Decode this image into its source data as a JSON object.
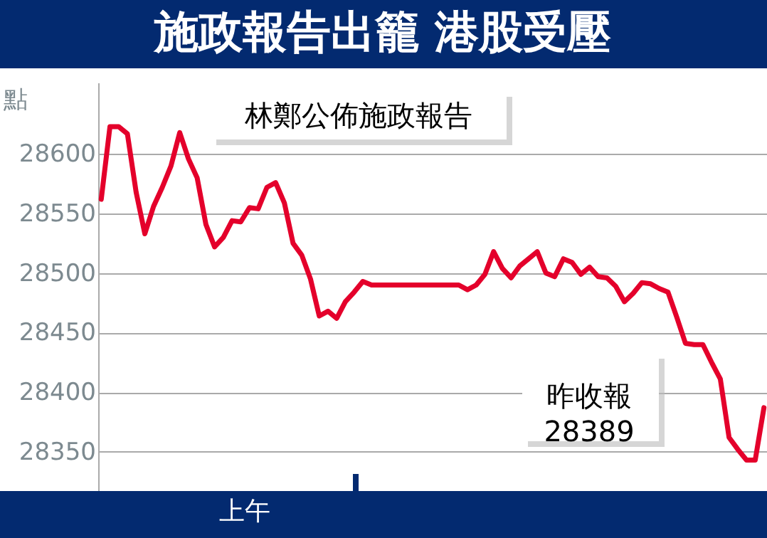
{
  "chart_data": {
    "type": "line",
    "title": "施政報告出籠  港股受壓",
    "xlabel": "上午",
    "ylabel": "點",
    "annotations": [
      "林鄭公佈施政報告",
      "昨收報\n28389"
    ],
    "categories": [
      null,
      null,
      null,
      null,
      null,
      null,
      null,
      null,
      null,
      null,
      null,
      null,
      null,
      null,
      null,
      null,
      null,
      null,
      null,
      null,
      null,
      null,
      null,
      null,
      null,
      null,
      null,
      null,
      null,
      null,
      null,
      null,
      null,
      null,
      null,
      null,
      null,
      null,
      null,
      null,
      null,
      null,
      null,
      null,
      null,
      null,
      null,
      null,
      null,
      null,
      null,
      null,
      null,
      null,
      null,
      null,
      null,
      null,
      null,
      null,
      null,
      null,
      null,
      null,
      null,
      null,
      null,
      null,
      null,
      null,
      null,
      null,
      null,
      null,
      null,
      null,
      null
    ],
    "series": [
      {
        "color": "#e4002b",
        "values": [
          28562,
          28623,
          28623,
          28617,
          28568,
          28533,
          28556,
          28572,
          28590,
          28618,
          28596,
          28580,
          28541,
          28522,
          28530,
          28544,
          28543,
          28555,
          28554,
          28572,
          28576,
          28559,
          28525,
          28515,
          28495,
          28464,
          28468,
          28462,
          28476,
          28484,
          28493,
          28490,
          28490,
          28490,
          28490,
          28490,
          28490,
          28490,
          28490,
          28490,
          28490,
          28490,
          28486,
          28490,
          28499,
          28518,
          28504,
          28496,
          28506,
          28512,
          28518,
          28500,
          28497,
          28512,
          28509,
          28499,
          28505,
          28497,
          28496,
          28489,
          28476,
          28483,
          28492,
          28491,
          28487,
          28484,
          28463,
          28441,
          28440,
          28440,
          28425,
          28411,
          28362,
          28352,
          28343,
          28343,
          28387
        ]
      }
    ],
    "ylim": [
      28317,
      28660
    ],
    "yticks": [
      28350,
      28400,
      28450,
      28500,
      28550,
      28600
    ],
    "grid": "y",
    "tick_labels": "y",
    "marker": "none",
    "line_style": "solid"
  }
}
